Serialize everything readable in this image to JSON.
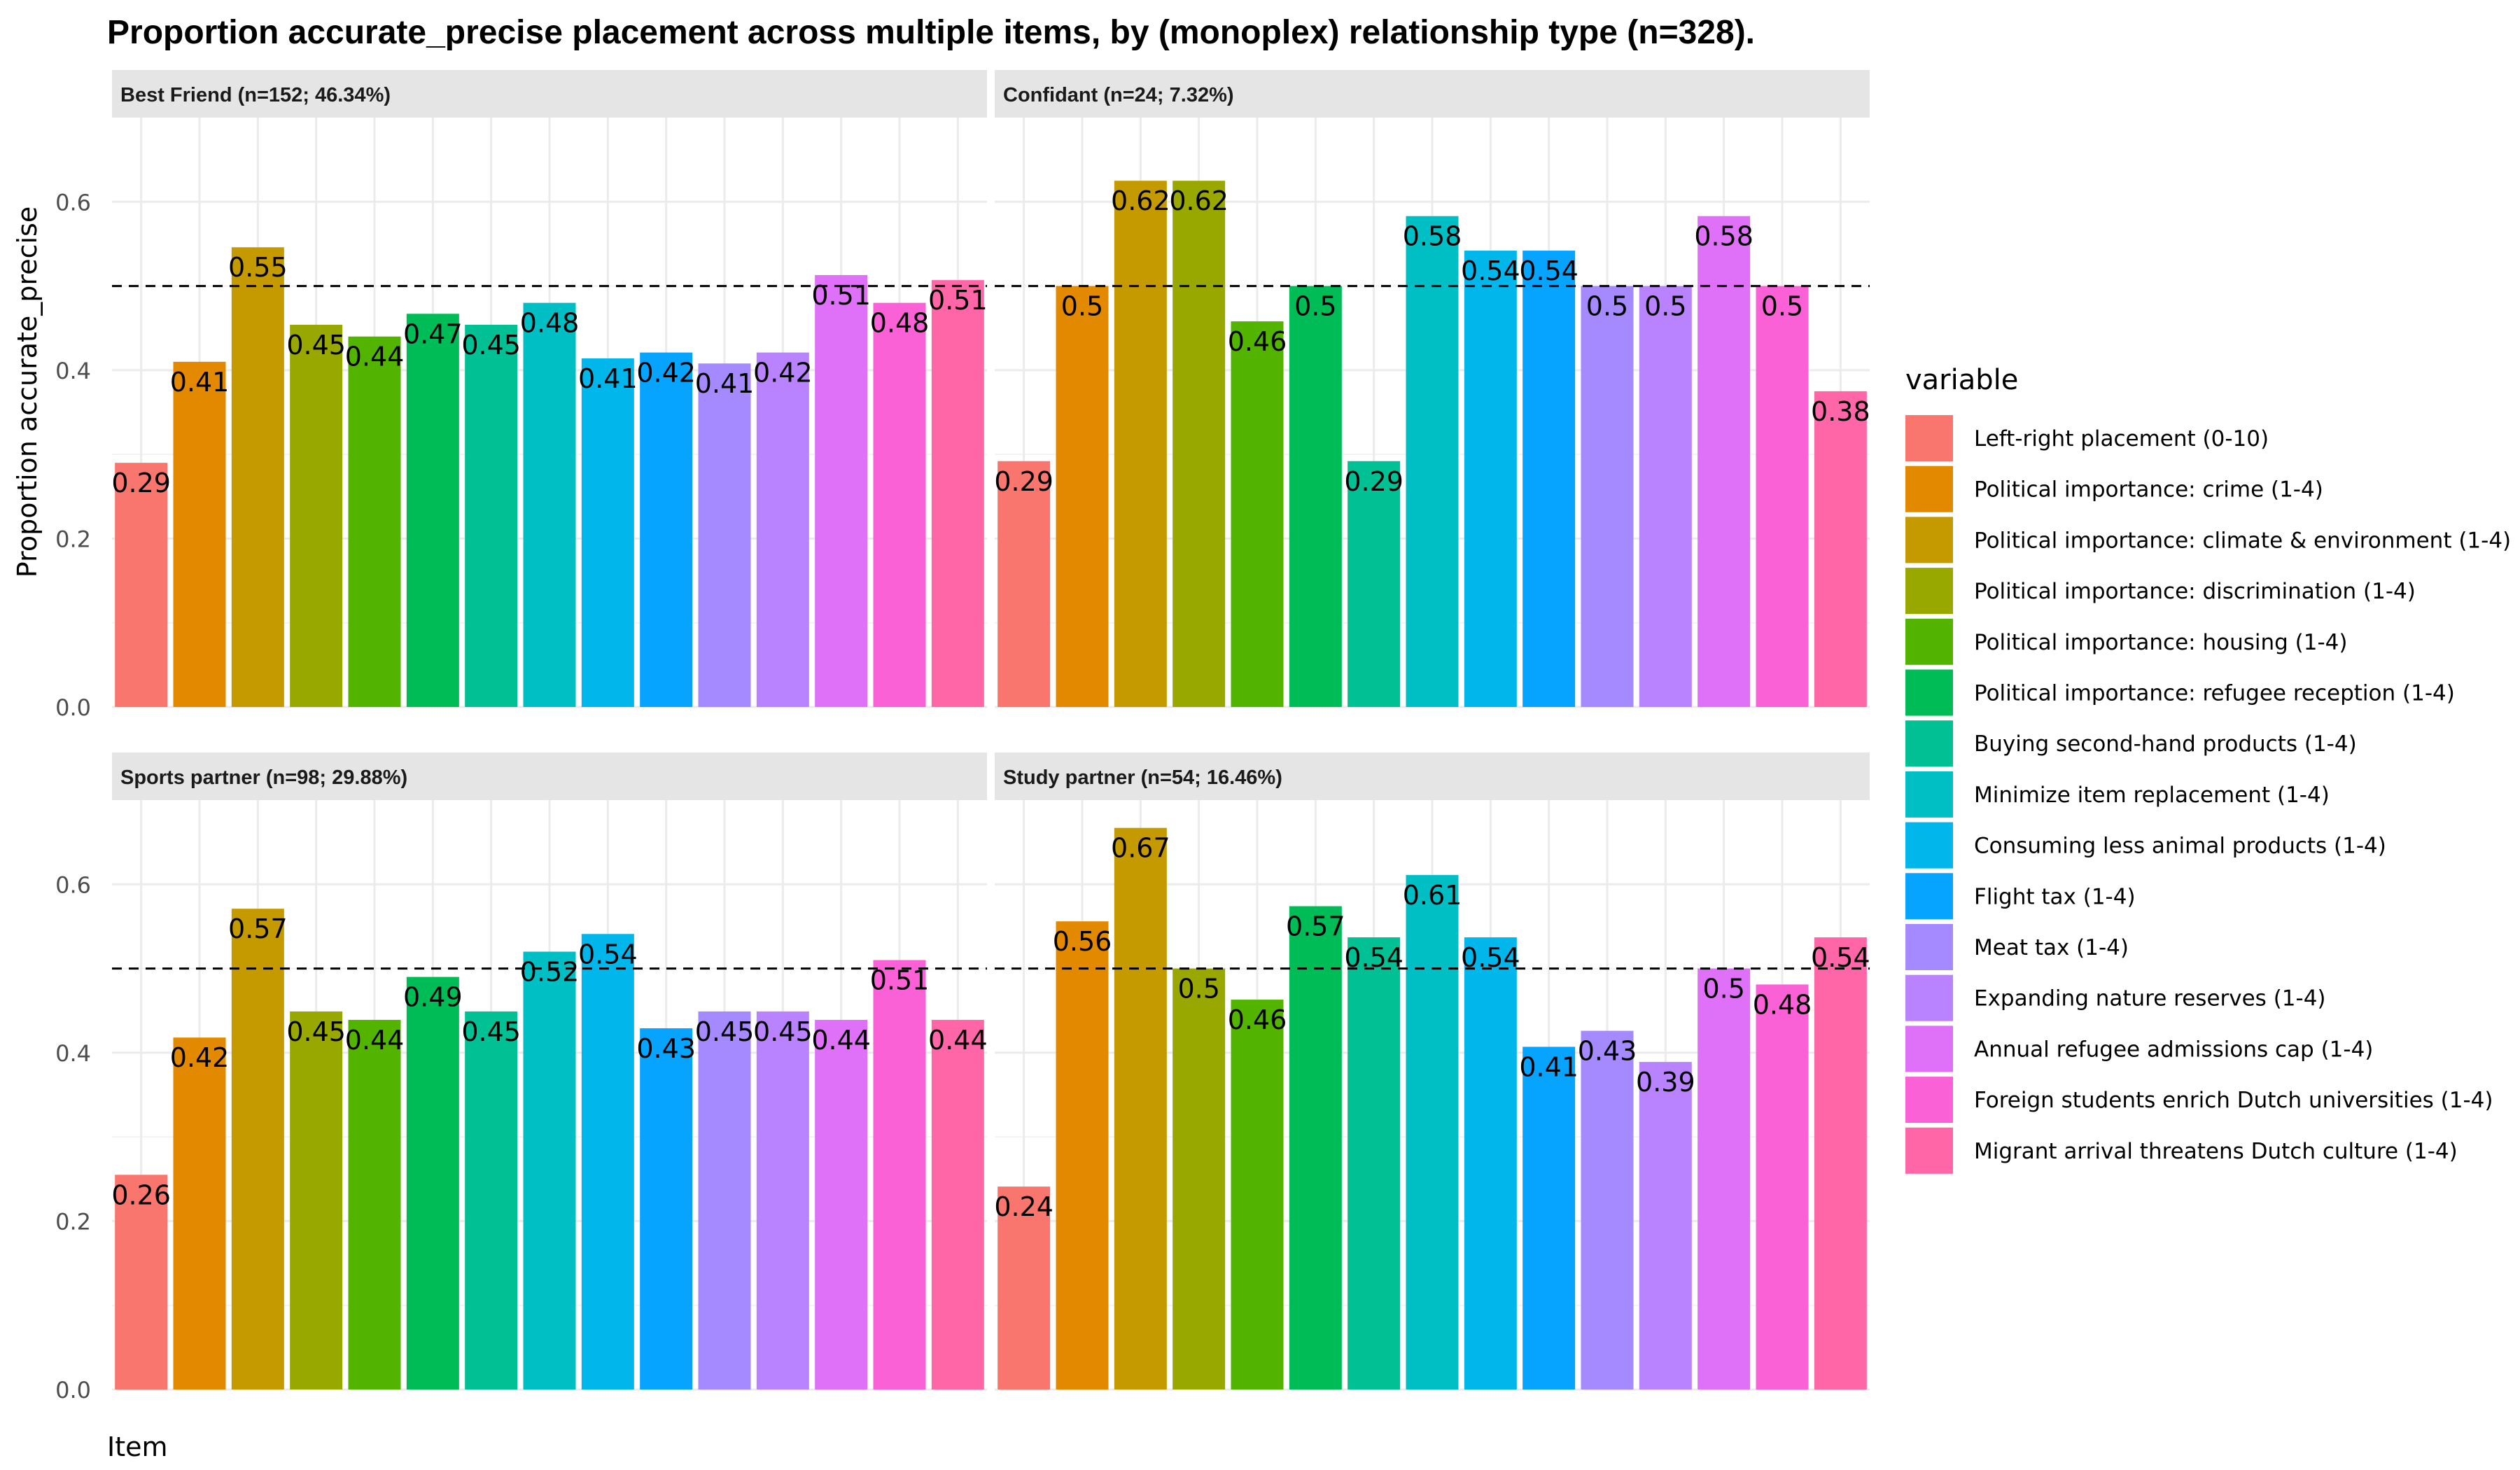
{
  "chart_data": {
    "type": "bar",
    "title": "Proportion accurate_precise placement across multiple items, by (monoplex) relationship type (n=328).",
    "xlabel": "Item",
    "ylabel": "Proportion accurate_precise",
    "ylim": [
      0,
      0.7
    ],
    "yticks": [
      0.0,
      0.2,
      0.4,
      0.6
    ],
    "ytick_labels": [
      "0.0",
      "0.2",
      "0.4",
      "0.6"
    ],
    "reference_line": 0.5,
    "grid": true,
    "legend_title": "variable",
    "legend_position": "right",
    "categories": [
      "Left-right placement (0-10)",
      "Political importance: crime (1-4)",
      "Political importance: climate & environment (1-4)",
      "Political importance: discrimination (1-4)",
      "Political importance: housing (1-4)",
      "Political importance: refugee reception (1-4)",
      "Buying second-hand products (1-4)",
      "Minimize item replacement (1-4)",
      "Consuming less animal products (1-4)",
      "Flight tax (1-4)",
      "Meat tax (1-4)",
      "Expanding nature reserves (1-4)",
      "Annual refugee admissions cap (1-4)",
      "Foreign students enrich Dutch universities (1-4)",
      "Migrant arrival threatens Dutch culture (1-4)"
    ],
    "colors": [
      "#F8766D",
      "#E38900",
      "#C49A00",
      "#99A800",
      "#53B400",
      "#00BC56",
      "#00C094",
      "#00BFC4",
      "#00B6EB",
      "#06A4FF",
      "#A58AFF",
      "#B983FF",
      "#DF70F8",
      "#FB61D7",
      "#FF66A8"
    ],
    "panels": [
      {
        "name": "Best Friend (n=152; 46.34%)",
        "values": [
          0.29,
          0.41,
          0.546,
          0.454,
          0.44,
          0.467,
          0.454,
          0.48,
          0.414,
          0.421,
          0.408,
          0.421,
          0.513,
          0.48,
          0.507
        ],
        "labels": [
          "0.29",
          "0.41",
          "0.55",
          "0.45",
          "0.44",
          "0.47",
          "0.45",
          "0.48",
          "0.41",
          "0.42",
          "0.41",
          "0.42",
          "0.51",
          "0.48",
          "0.51"
        ]
      },
      {
        "name": "Confidant (n=24; 7.32%)",
        "values": [
          0.292,
          0.5,
          0.625,
          0.625,
          0.458,
          0.5,
          0.292,
          0.583,
          0.542,
          0.542,
          0.5,
          0.5,
          0.583,
          0.5,
          0.375
        ],
        "labels": [
          "0.29",
          "0.5",
          "0.62",
          "0.62",
          "0.46",
          "0.5",
          "0.29",
          "0.58",
          "0.54",
          "0.54",
          "0.5",
          "0.5",
          "0.58",
          "0.5",
          "0.38"
        ]
      },
      {
        "name": "Sports partner (n=98; 29.88%)",
        "values": [
          0.255,
          0.418,
          0.571,
          0.449,
          0.439,
          0.49,
          0.449,
          0.52,
          0.541,
          0.429,
          0.449,
          0.449,
          0.439,
          0.51,
          0.439
        ],
        "labels": [
          "0.26",
          "0.42",
          "0.57",
          "0.45",
          "0.44",
          "0.49",
          "0.45",
          "0.52",
          "0.54",
          "0.43",
          "0.45",
          "0.45",
          "0.44",
          "0.51",
          "0.44"
        ]
      },
      {
        "name": "Study partner (n=54; 16.46%)",
        "values": [
          0.241,
          0.556,
          0.667,
          0.5,
          0.463,
          0.574,
          0.537,
          0.611,
          0.537,
          0.407,
          0.426,
          0.389,
          0.5,
          0.481,
          0.537
        ],
        "labels": [
          "0.24",
          "0.56",
          "0.67",
          "0.5",
          "0.46",
          "0.57",
          "0.54",
          "0.61",
          "0.54",
          "0.41",
          "0.43",
          "0.39",
          "0.5",
          "0.48",
          "0.54"
        ]
      }
    ]
  }
}
